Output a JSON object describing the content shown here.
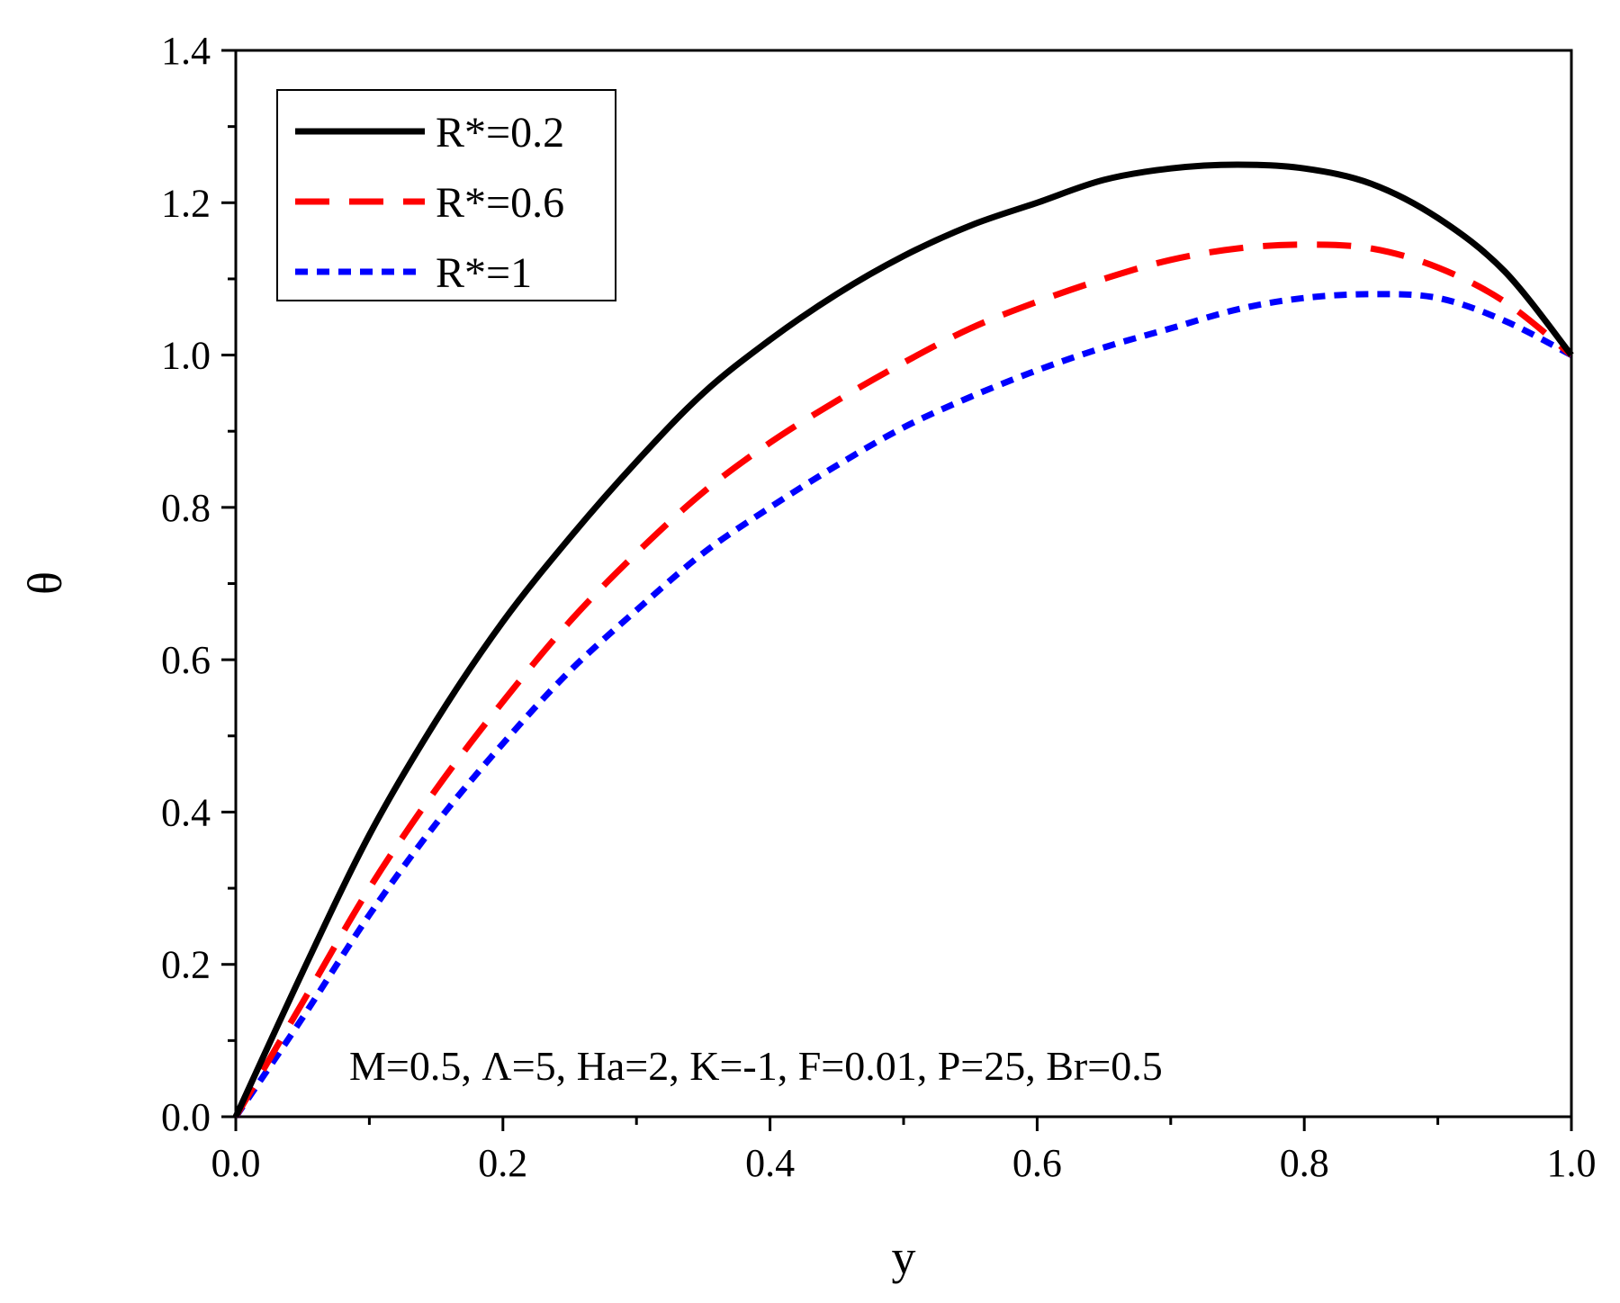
{
  "chart_data": {
    "type": "line",
    "xlabel": "y",
    "ylabel": "θ",
    "xlim": [
      0,
      1
    ],
    "ylim": [
      0,
      1.4
    ],
    "x_ticks": [
      "0.0",
      "0.2",
      "0.4",
      "0.6",
      "0.8",
      "1.0"
    ],
    "y_ticks": [
      "0.0",
      "0.2",
      "0.4",
      "0.6",
      "0.8",
      "1.0",
      "1.2",
      "1.4"
    ],
    "legend_position": "top-left",
    "annotation": "M=0.5, Λ=5, Ha=2, K=-1, F=0.01, P=25, Br=0.5",
    "x": [
      0,
      0.05,
      0.1,
      0.15,
      0.2,
      0.25,
      0.3,
      0.35,
      0.4,
      0.45,
      0.5,
      0.55,
      0.6,
      0.65,
      0.7,
      0.75,
      0.8,
      0.85,
      0.9,
      0.95,
      1.0
    ],
    "series": [
      {
        "name": "R*=0.2",
        "color": "#000000",
        "dash": "solid",
        "values": [
          0.0,
          0.19,
          0.37,
          0.52,
          0.65,
          0.76,
          0.86,
          0.95,
          1.02,
          1.08,
          1.13,
          1.17,
          1.2,
          1.23,
          1.245,
          1.25,
          1.245,
          1.225,
          1.18,
          1.11,
          1.0
        ]
      },
      {
        "name": "R*=0.6",
        "color": "#ff0000",
        "dash": "dashed",
        "values": [
          0.0,
          0.15,
          0.3,
          0.43,
          0.545,
          0.65,
          0.74,
          0.82,
          0.885,
          0.94,
          0.99,
          1.035,
          1.07,
          1.1,
          1.125,
          1.14,
          1.145,
          1.14,
          1.115,
          1.07,
          1.0
        ]
      },
      {
        "name": "R*=1",
        "color": "#0000ff",
        "dash": "dotted",
        "values": [
          0.0,
          0.13,
          0.265,
          0.385,
          0.49,
          0.585,
          0.665,
          0.74,
          0.8,
          0.855,
          0.905,
          0.945,
          0.98,
          1.01,
          1.035,
          1.06,
          1.075,
          1.08,
          1.075,
          1.045,
          1.0
        ]
      }
    ]
  }
}
